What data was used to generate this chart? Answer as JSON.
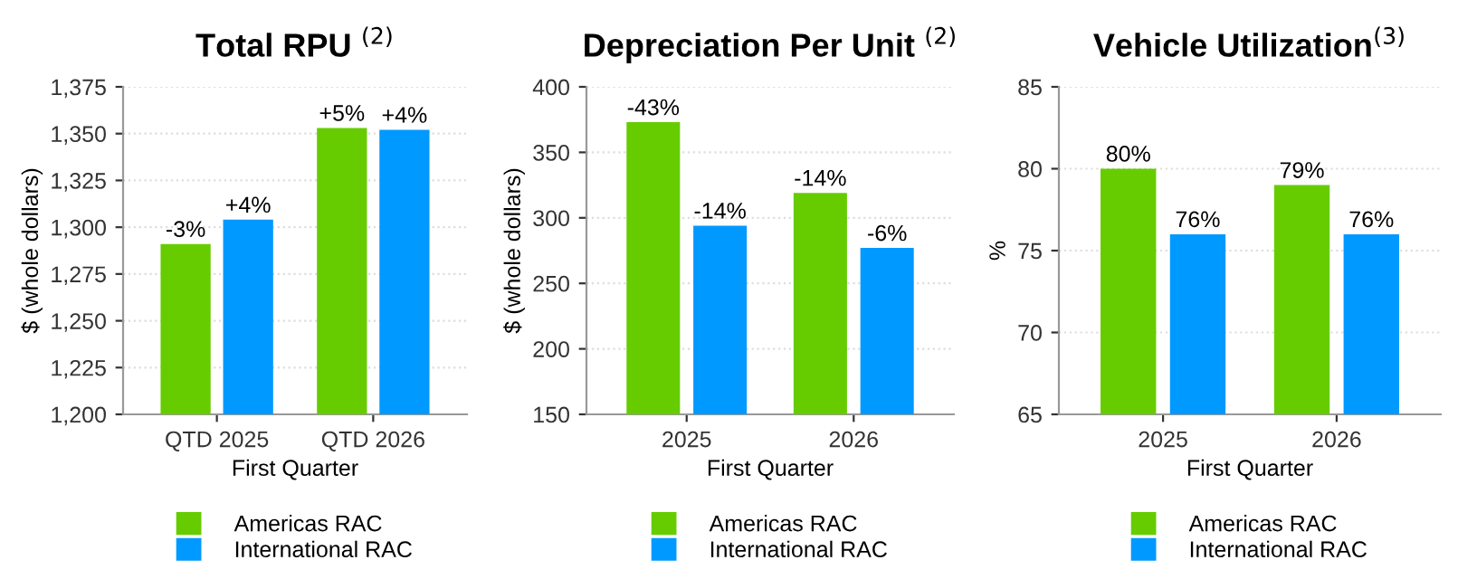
{
  "chart_data": [
    {
      "type": "bar",
      "title": "Total RPU $^{(2)}$",
      "xlabel": "First Quarter",
      "ylabel": "$ (whole dollars)",
      "categories": [
        "QTD 2025",
        "QTD 2026"
      ],
      "series": [
        {
          "name": "Americas RAC",
          "color": "#66cc00",
          "values": [
            1291,
            1353
          ]
        },
        {
          "name": "International RAC",
          "color": "#0099ff",
          "values": [
            1304,
            1352
          ]
        }
      ],
      "annotations": [
        {
          "text": "-3%",
          "x": "QTD 2025",
          "y": 1291
        },
        {
          "text": "+4%",
          "x": "QTD 2025",
          "y": 1304
        },
        {
          "text": "+5%",
          "x": "QTD 2026",
          "y": 1353
        },
        {
          "text": "+4%",
          "x": "QTD 2026",
          "y": 1352
        }
      ],
      "ylim": [
        1200,
        1375
      ],
      "yticks": [
        {
          "value": 1200,
          "label": "1,200"
        },
        {
          "value": 1225,
          "label": "1,225"
        },
        {
          "value": 1250,
          "label": "1,250"
        },
        {
          "value": 1275,
          "label": "1,275"
        },
        {
          "value": 1300,
          "label": "1,300"
        },
        {
          "value": 1325,
          "label": "1,325"
        },
        {
          "value": 1350,
          "label": "1,350"
        },
        {
          "value": 1375,
          "label": "1,375"
        }
      ],
      "grid": "y",
      "legend": "bottom"
    },
    {
      "type": "bar",
      "title": "Depreciation Per Unit $^{(2)}$",
      "xlabel": "First Quarter",
      "ylabel": "$ (whole dollars)",
      "categories": [
        "2025",
        "2026"
      ],
      "series": [
        {
          "name": "Americas RAC",
          "color": "#66cc00",
          "values": [
            373,
            319
          ]
        },
        {
          "name": "International RAC",
          "color": "#0099ff",
          "values": [
            294,
            277
          ]
        }
      ],
      "annotations": [
        {
          "text": "-43%",
          "x": "2025",
          "y": 373
        },
        {
          "text": "-14%",
          "x": "2025",
          "y": 294
        },
        {
          "text": "-14%",
          "x": "2026",
          "y": 319
        },
        {
          "text": "-6%",
          "x": "2026",
          "y": 277
        }
      ],
      "ylim": [
        150,
        400
      ],
      "yticks": [
        150,
        200,
        250,
        300,
        350,
        400
      ],
      "grid": "y",
      "legend": "bottom"
    },
    {
      "type": "bar",
      "title": "Vehicle Utilization$^{(3)}$",
      "xlabel": "First Quarter",
      "ylabel": "%",
      "categories": [
        "2025",
        "2026"
      ],
      "series": [
        {
          "name": "Americas RAC",
          "color": "#66cc00",
          "values": [
            80,
            79
          ],
          "value_labels": [
            "80%",
            "79%"
          ]
        },
        {
          "name": "International RAC",
          "color": "#0099ff",
          "values": [
            76,
            76
          ],
          "value_labels": [
            "76%",
            "76%"
          ]
        }
      ],
      "ylim": [
        65,
        85
      ],
      "yticks": [
        65,
        70,
        75,
        80,
        85
      ],
      "grid": "y",
      "legend": "bottom"
    }
  ]
}
